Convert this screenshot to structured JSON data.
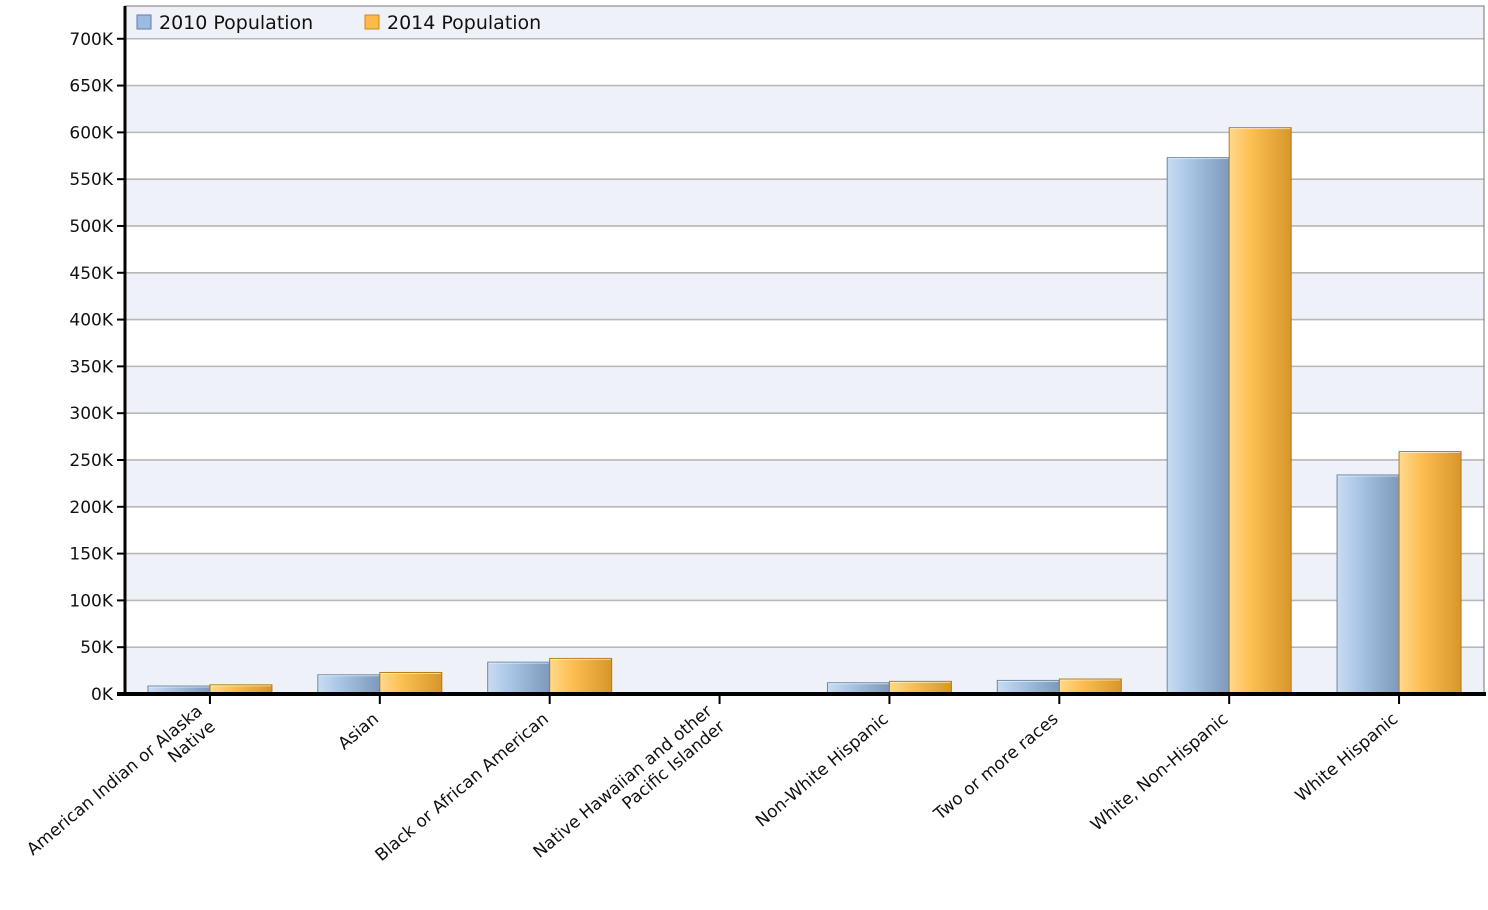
{
  "chart_data": {
    "type": "bar",
    "categories": [
      [
        "American Indian or Alaska",
        "Native"
      ],
      [
        "Asian"
      ],
      [
        "Black or African American"
      ],
      [
        "Native Hawaiian and other",
        "Pacific Islander"
      ],
      [
        "Non-White Hispanic"
      ],
      [
        "Two or more races"
      ],
      [
        "White, Non-Hispanic"
      ],
      [
        "White Hispanic"
      ]
    ],
    "series": [
      {
        "name": "2010 Population",
        "color": "#9dbbe0",
        "values": [
          8500,
          20500,
          34000,
          400,
          12000,
          14500,
          573000,
          234000
        ]
      },
      {
        "name": "2014 Population",
        "color": "#fdb94a",
        "values": [
          9800,
          23000,
          38000,
          500,
          13500,
          16000,
          605000,
          259000
        ]
      }
    ],
    "ylim": [
      0,
      700000
    ],
    "ytick_step": 50000,
    "ytick_labels": [
      "0K",
      "50K",
      "100K",
      "150K",
      "200K",
      "250K",
      "300K",
      "350K",
      "400K",
      "450K",
      "500K",
      "550K",
      "600K",
      "650K",
      "700K"
    ],
    "legend_position": "top-left",
    "grid": true,
    "title": "",
    "xlabel": "",
    "ylabel": ""
  }
}
